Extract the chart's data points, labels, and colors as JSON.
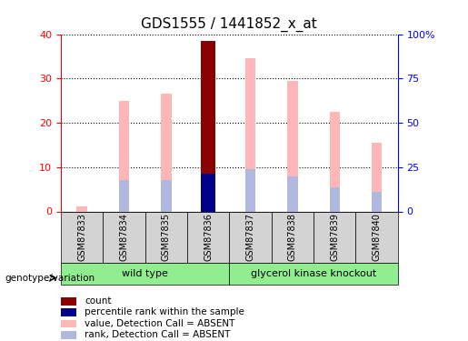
{
  "title": "GDS1555 / 1441852_x_at",
  "samples": [
    "GSM87833",
    "GSM87834",
    "GSM87835",
    "GSM87836",
    "GSM87837",
    "GSM87838",
    "GSM87839",
    "GSM87840"
  ],
  "value_bars": [
    1.2,
    25.0,
    26.5,
    38.5,
    34.5,
    29.5,
    22.5,
    15.5
  ],
  "rank_bars": [
    0,
    7.0,
    7.0,
    8.5,
    9.5,
    8.0,
    5.5,
    4.5
  ],
  "count_bar_index": 3,
  "count_bar_value": 38.5,
  "count_bar_rank": 8.5,
  "ylim_left": [
    0,
    40
  ],
  "ylim_right": [
    0,
    100
  ],
  "yticks_left": [
    0,
    10,
    20,
    30,
    40
  ],
  "yticks_right": [
    0,
    25,
    50,
    75,
    100
  ],
  "ytick_labels_right": [
    "0",
    "25",
    "50",
    "75",
    "100%"
  ],
  "value_bar_color": "#ffb6b6",
  "rank_bar_color": "#b0b8e0",
  "count_bar_color": "#8b0000",
  "count_rank_color": "#00008b",
  "left_axis_color": "red",
  "right_axis_color": "blue",
  "groups": [
    {
      "label": "wild type",
      "samples": [
        0,
        1,
        2,
        3
      ],
      "color": "#90ee90"
    },
    {
      "label": "glycerol kinase knockout",
      "samples": [
        4,
        5,
        6,
        7
      ],
      "color": "#90ee90"
    }
  ],
  "group_label_prefix": "genotype/variation",
  "legend_items": [
    {
      "color": "#8b0000",
      "label": "count"
    },
    {
      "color": "#00008b",
      "label": "percentile rank within the sample"
    },
    {
      "color": "#ffb6b6",
      "label": "value, Detection Call = ABSENT"
    },
    {
      "color": "#b0b8e0",
      "label": "rank, Detection Call = ABSENT"
    }
  ]
}
